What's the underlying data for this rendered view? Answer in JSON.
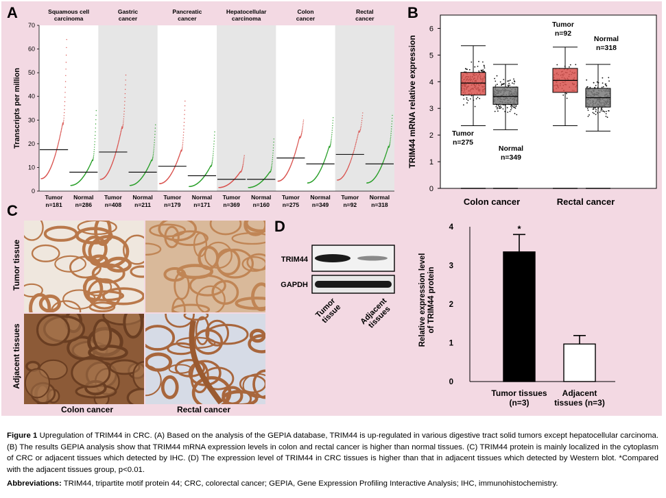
{
  "panels": {
    "A": {
      "letter": "A",
      "ylabel": "Transcripts per million",
      "yticks": [
        "0",
        "10",
        "20",
        "30",
        "40",
        "50",
        "60",
        "70"
      ],
      "groups": [
        {
          "title": "Squamous cell\ncarcinoma",
          "tumor": "Tumor\nn=181",
          "normal": "Normal\nn=286"
        },
        {
          "title": "Gastric\ncancer",
          "tumor": "Tumor\nn=408",
          "normal": "Normal\nn=211"
        },
        {
          "title": "Pancreatic\ncancer",
          "tumor": "Tumor\nn=179",
          "normal": "Normal\nn=171"
        },
        {
          "title": "Hepatocellular\ncarcinoma",
          "tumor": "Tumor\nn=369",
          "normal": "Normal\nn=160"
        },
        {
          "title": "Colon\ncancer",
          "tumor": "Tumor\nn=275",
          "normal": "Normal\nn=349"
        },
        {
          "title": "Rectal\ncancer",
          "tumor": "Tumor\nn=92",
          "normal": "Normal\nn=318"
        }
      ]
    },
    "B": {
      "letter": "B",
      "ylabel": "TRIM44 mRNA relative expression",
      "yticks": [
        "0",
        "1",
        "2",
        "3",
        "4",
        "5",
        "6"
      ],
      "groups": [
        "Colon  cancer",
        "Rectal  cancer"
      ],
      "labels": {
        "colon_tumor": "Tumor\nn=275",
        "colon_normal": "Normal\nn=349",
        "rectal_tumor": "Tumor\nn=92",
        "rectal_normal": "Normal\nn=318"
      }
    },
    "C": {
      "letter": "C",
      "row_labels": [
        "Tumor tissue",
        "Adjacent tissues"
      ],
      "col_labels": [
        "Colon  cancer",
        "Rectal  cancer"
      ]
    },
    "D": {
      "letter": "D",
      "bands": [
        "TRIM44",
        "GAPDH"
      ],
      "lanes": [
        "Tumor\ntissue",
        "Adjacent\ntissues"
      ],
      "bar_ylabel": "Relative expression level\nof TRIM44 protein",
      "bar_yticks": [
        "0",
        "1",
        "2",
        "3",
        "4"
      ],
      "star": "*",
      "bar_xlabels": [
        "Tumor tissues\n(n=3)",
        "Adjacent\ntissues (n=3)"
      ]
    }
  },
  "chart_data": [
    {
      "panel": "A",
      "type": "scatter",
      "ylabel": "Transcripts per million",
      "ylim": [
        0,
        70
      ],
      "categories": [
        "Squamous cell carcinoma",
        "Gastric cancer",
        "Pancreatic cancer",
        "Hepatocellular carcinoma",
        "Colon cancer",
        "Rectal cancer"
      ],
      "series": [
        {
          "name": "Tumor",
          "color": "#d9534f",
          "median": [
            17.5,
            16.5,
            10.5,
            5,
            14,
            15.5
          ],
          "n": [
            181,
            408,
            179,
            369,
            275,
            92
          ],
          "max": [
            64,
            49,
            38,
            15,
            30,
            33
          ]
        },
        {
          "name": "Normal",
          "color": "#2ca02c",
          "median": [
            8,
            8,
            6.5,
            5,
            11.5,
            11.5
          ],
          "n": [
            286,
            211,
            171,
            160,
            349,
            318
          ],
          "max": [
            34,
            28,
            25,
            22,
            31,
            32
          ]
        }
      ]
    },
    {
      "panel": "B",
      "type": "box",
      "ylabel": "TRIM44 mRNA relative expression",
      "ylim": [
        0,
        6.5
      ],
      "categories": [
        "Colon cancer",
        "Rectal cancer"
      ],
      "series": [
        {
          "name": "Tumor",
          "color": "#d9534f",
          "q1": [
            3.5,
            3.6
          ],
          "median": [
            3.95,
            4.05
          ],
          "q3": [
            4.35,
            4.5
          ],
          "whisker_low": [
            2.35,
            2.35
          ],
          "whisker_high": [
            5.35,
            5.3
          ]
        },
        {
          "name": "Normal",
          "color": "#7a7a7a",
          "q1": [
            3.15,
            3.05
          ],
          "median": [
            3.45,
            3.4
          ],
          "q3": [
            3.8,
            3.75
          ],
          "whisker_low": [
            2.2,
            2.15
          ],
          "whisker_high": [
            4.65,
            4.65
          ]
        }
      ]
    },
    {
      "panel": "D",
      "type": "bar",
      "ylabel": "Relative expression level of TRIM44 protein",
      "ylim": [
        0,
        4
      ],
      "categories": [
        "Tumor tissues (n=3)",
        "Adjacent tissues (n=3)"
      ],
      "values": [
        3.35,
        0.97
      ],
      "errors": [
        0.45,
        0.22
      ],
      "colors": [
        "#000000",
        "#ffffff"
      ]
    }
  ],
  "caption": {
    "label": "Figure 1",
    "text": " Upregulation of TRIM44 in CRC. (A) Based on the analysis of the GEPIA database, TRIM44 is up-regulated in various digestive tract solid tumors except hepatocellular carcinoma. (B) The results GEPIA analysis show that TRIM44 mRNA expression levels in colon and rectal cancer is higher than normal tissues. (C) TRIM44 protein is mainly localized in the cytoplasm of CRC or adjacent tissues which detected by IHC. (D) The expression level of TRIM44 in CRC tissues is higher than that in adjacent tissues which detected by Western blot. *Compared with the adjacent tissues group, p<0.01.",
    "abbr_label": "Abbreviations:",
    "abbr_text": " TRIM44, tripartite motif protein 44; CRC, colorectal cancer; GEPIA, Gene Expression Profiling Interactive Analysis; IHC, immunohistochemistry."
  }
}
